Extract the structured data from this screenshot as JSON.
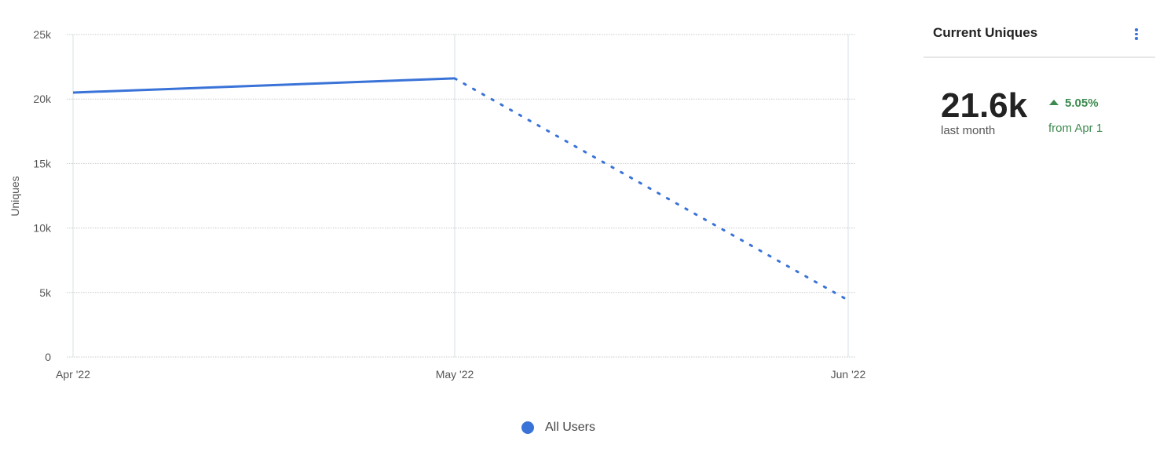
{
  "chart_data": {
    "type": "line",
    "x": [
      "Apr '22",
      "May '22",
      "Jun '22"
    ],
    "series": [
      {
        "name": "All Users",
        "values": [
          20500,
          21600,
          4400
        ],
        "color": "#3a73d8",
        "dashed_from_index": 1
      }
    ],
    "ylabel": "Uniques",
    "ylim": [
      0,
      25000
    ],
    "yticks": [
      0,
      5000,
      10000,
      15000,
      20000,
      25000
    ],
    "ytick_labels": [
      "0",
      "5k",
      "10k",
      "15k",
      "20k",
      "25k"
    ],
    "grid": true,
    "legend": "bottom-center"
  },
  "panel": {
    "title": "Current Uniques",
    "value": "21.6k",
    "value_label": "last month",
    "change": "5.05%",
    "change_direction": "up",
    "change_label": "from Apr 1",
    "accent": "#3d8a4f",
    "menu_icon": "kebab-icon"
  }
}
